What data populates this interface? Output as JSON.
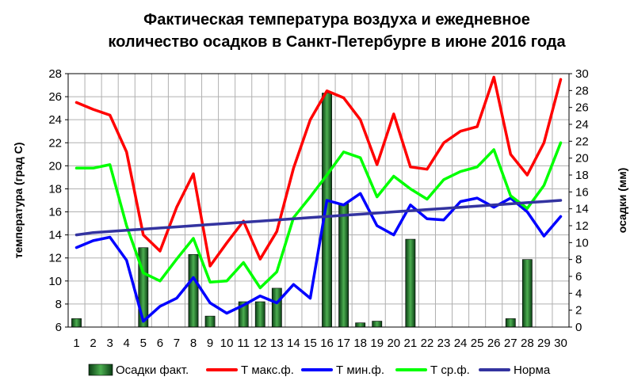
{
  "chart_data": {
    "type": "bar+line",
    "title": [
      "Фактическая температура воздуха и ежедневное",
      "количество осадков в Санкт-Петербурге в июне 2016 года"
    ],
    "ylabel_left": "температура (град С)",
    "ylabel_right": "осадки (мм)",
    "ylim_left": [
      6,
      28
    ],
    "yticks_left": [
      6,
      8,
      10,
      12,
      14,
      16,
      18,
      20,
      22,
      24,
      26,
      28
    ],
    "ylim_right": [
      0,
      30
    ],
    "yticks_right": [
      0,
      2,
      4,
      6,
      8,
      10,
      12,
      14,
      16,
      18,
      20,
      22,
      24,
      26,
      28,
      30
    ],
    "categories": [
      "1",
      "2",
      "3",
      "4",
      "5",
      "6",
      "7",
      "8",
      "9",
      "10",
      "11",
      "12",
      "13",
      "14",
      "15",
      "16",
      "17",
      "18",
      "19",
      "20",
      "21",
      "22",
      "23",
      "24",
      "25",
      "26",
      "27",
      "28",
      "29",
      "30"
    ],
    "grid": true,
    "legend_position": "bottom",
    "precipitation": {
      "name": "Осадки факт.",
      "axis": "right",
      "values": [
        1,
        0,
        0,
        0,
        9.4,
        0,
        0,
        8.6,
        1.3,
        0,
        3,
        3,
        4.6,
        0,
        0,
        27.7,
        14.6,
        0.5,
        0.7,
        0,
        10.4,
        0,
        0,
        0,
        0,
        0,
        1,
        8,
        0,
        0
      ]
    },
    "series": [
      {
        "name": "Т макс.ф.",
        "color": "#ff0000",
        "values": [
          25.5,
          24.9,
          24.4,
          21.2,
          14,
          12.6,
          16.4,
          19.3,
          11.3,
          13.3,
          15.2,
          11.9,
          14.3,
          19.8,
          24,
          26.5,
          25.9,
          24,
          20.1,
          24.5,
          19.9,
          19.7,
          22,
          23,
          23.4,
          27.7,
          21,
          19.2,
          22,
          27.5
        ]
      },
      {
        "name": "Т мин.ф.",
        "color": "#0000ff",
        "values": [
          12.9,
          13.5,
          13.8,
          11.8,
          6.5,
          7.8,
          8.5,
          10.3,
          8.1,
          7.2,
          7.9,
          8.7,
          8.1,
          9.7,
          8.5,
          17,
          16.6,
          17.6,
          14.8,
          14,
          16.6,
          15.4,
          15.3,
          16.9,
          17.2,
          16.4,
          17.2,
          16,
          13.9,
          15.6
        ]
      },
      {
        "name": "Т ср.ф.",
        "color": "#00ff00",
        "values": [
          19.8,
          19.8,
          20.1,
          14.8,
          10.7,
          10,
          11.9,
          13.7,
          9.9,
          10,
          11.6,
          9.4,
          10.8,
          15.5,
          17.3,
          19.2,
          21.2,
          20.7,
          17.3,
          19.1,
          18,
          17.1,
          18.8,
          19.5,
          19.9,
          21.4,
          17.4,
          16.3,
          18.3,
          22
        ]
      },
      {
        "name": "Норма",
        "color": "#3333a0",
        "values": [
          14,
          14.2,
          14.3,
          14.4,
          14.5,
          14.6,
          14.7,
          14.8,
          14.9,
          15,
          15.1,
          15.2,
          15.3,
          15.4,
          15.5,
          15.6,
          15.7,
          15.8,
          15.9,
          16,
          16.1,
          16.2,
          16.3,
          16.4,
          16.5,
          16.6,
          16.7,
          16.8,
          16.9,
          17
        ]
      }
    ]
  }
}
